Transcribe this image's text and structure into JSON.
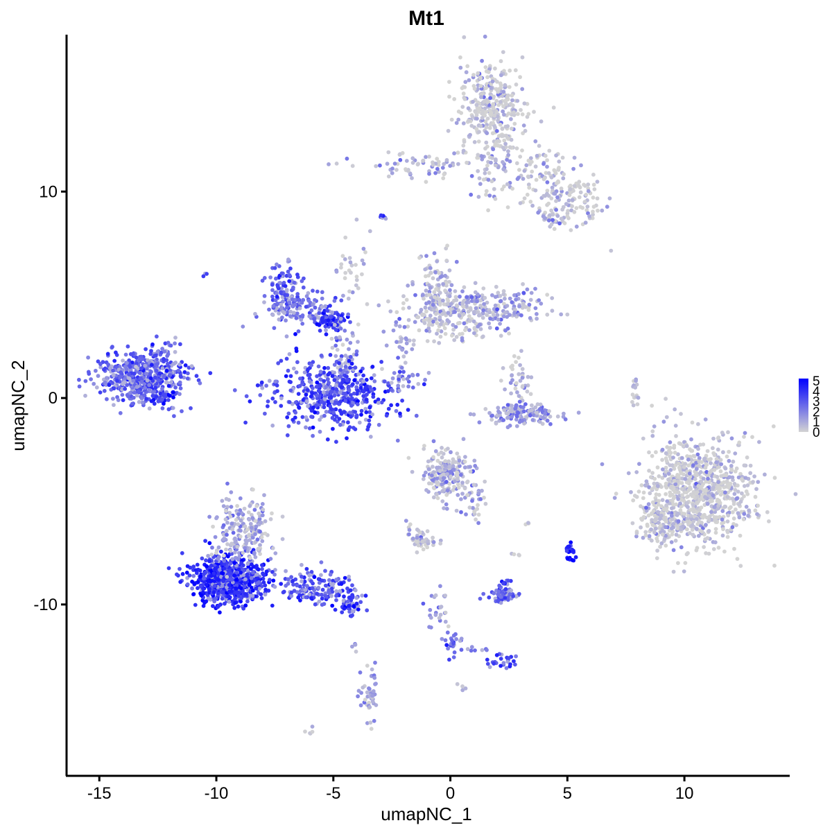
{
  "chart_data": {
    "type": "scatter",
    "title": "Mt1",
    "xlabel": "umapNC_1",
    "ylabel": "umapNC_2",
    "xlim": [
      -16.4,
      14.5
    ],
    "ylim": [
      -18.3,
      17.6
    ],
    "xticks": [
      -15,
      -10,
      -5,
      0,
      5,
      10
    ],
    "xtick_labels": [
      "-15",
      "-10",
      "-5",
      "0",
      "5",
      "10"
    ],
    "yticks": [
      -10,
      0,
      10
    ],
    "ytick_labels": [
      "-10",
      "0",
      "10"
    ],
    "grid": false,
    "legend": {
      "position": "right",
      "labels": [
        "5",
        "4",
        "3",
        "2",
        "1",
        "0"
      ],
      "values": [
        5,
        4,
        3,
        2,
        1,
        0
      ],
      "color_low": "#d3d3d3",
      "color_high": "#0000ff"
    },
    "color_scale": {
      "min": 0,
      "max": 5,
      "low": "#d3d3d3",
      "high": "#0000ff"
    },
    "point_color_note": "points colored by Mt1 expression",
    "clusters": [
      {
        "cx": 1.8,
        "cy": 14.2,
        "sx": 0.75,
        "sy": 1.1,
        "n": 320,
        "expr": 0.3
      },
      {
        "cx": 1.8,
        "cy": 11.5,
        "sx": 0.45,
        "sy": 0.9,
        "n": 70,
        "expr": 0.5
      },
      {
        "cx": -1.3,
        "cy": 11.2,
        "sx": 1.3,
        "sy": 0.35,
        "n": 70,
        "expr": 0.7
      },
      {
        "cx": 3.8,
        "cy": 11.1,
        "sx": 0.8,
        "sy": 0.6,
        "n": 80,
        "expr": 0.3
      },
      {
        "cx": 5.2,
        "cy": 9.6,
        "sx": 0.8,
        "sy": 0.55,
        "n": 110,
        "expr": 0.3
      },
      {
        "cx": 4.4,
        "cy": 8.8,
        "sx": 0.3,
        "sy": 0.3,
        "n": 25,
        "expr": 0.8
      },
      {
        "cx": -2.8,
        "cy": 8.8,
        "sx": 0.1,
        "sy": 0.1,
        "n": 8,
        "expr": 3.5
      },
      {
        "cx": -4.3,
        "cy": 6.4,
        "sx": 0.35,
        "sy": 0.7,
        "n": 30,
        "expr": 0.2
      },
      {
        "cx": -7.0,
        "cy": 5.2,
        "sx": 0.4,
        "sy": 0.6,
        "n": 110,
        "expr": 2.9
      },
      {
        "cx": -6.2,
        "cy": 4.2,
        "sx": 0.9,
        "sy": 0.4,
        "n": 100,
        "expr": 2.6
      },
      {
        "cx": -5.0,
        "cy": 3.7,
        "sx": 0.3,
        "sy": 0.3,
        "n": 80,
        "expr": 3.8
      },
      {
        "cx": -4.6,
        "cy": 2.0,
        "sx": 0.3,
        "sy": 0.7,
        "n": 50,
        "expr": 1.0
      },
      {
        "cx": -5.0,
        "cy": 0.2,
        "sx": 1.4,
        "sy": 0.8,
        "n": 480,
        "expr": 3.3
      },
      {
        "cx": -0.6,
        "cy": 5.2,
        "sx": 0.5,
        "sy": 0.9,
        "n": 110,
        "expr": 0.8
      },
      {
        "cx": -0.3,
        "cy": 3.8,
        "sx": 1.1,
        "sy": 0.6,
        "n": 150,
        "expr": 0.4
      },
      {
        "cx": 1.8,
        "cy": 4.4,
        "sx": 1.1,
        "sy": 0.45,
        "n": 180,
        "expr": 1.1
      },
      {
        "cx": -2.0,
        "cy": 2.7,
        "sx": 0.2,
        "sy": 0.8,
        "n": 25,
        "expr": 1.5
      },
      {
        "cx": -1.8,
        "cy": 1.0,
        "sx": 0.6,
        "sy": 0.3,
        "n": 20,
        "expr": 1.8
      },
      {
        "cx": 2.9,
        "cy": 0.7,
        "sx": 0.3,
        "sy": 0.6,
        "n": 40,
        "expr": 0.3
      },
      {
        "cx": 3.2,
        "cy": -0.8,
        "sx": 0.75,
        "sy": 0.25,
        "n": 140,
        "expr": 1.5
      },
      {
        "cx": 7.9,
        "cy": 0.2,
        "sx": 0.08,
        "sy": 0.45,
        "n": 15,
        "expr": 0.2
      },
      {
        "cx": -13.2,
        "cy": 1.0,
        "sx": 0.9,
        "sy": 0.6,
        "n": 520,
        "expr": 2.7
      },
      {
        "cx": -12.0,
        "cy": 1.2,
        "sx": 0.4,
        "sy": 0.6,
        "n": 40,
        "expr": 3.5
      },
      {
        "cx": -12.3,
        "cy": 0.0,
        "sx": 0.3,
        "sy": 0.15,
        "n": 25,
        "expr": 4.0
      },
      {
        "cx": -11.9,
        "cy": 2.5,
        "sx": 0.25,
        "sy": 0.3,
        "n": 12,
        "expr": 2.4
      },
      {
        "cx": -0.1,
        "cy": -3.6,
        "sx": 0.55,
        "sy": 0.65,
        "n": 200,
        "expr": 0.8
      },
      {
        "cx": 1.0,
        "cy": -4.9,
        "sx": 0.3,
        "sy": 0.55,
        "n": 35,
        "expr": 0.9
      },
      {
        "cx": -1.2,
        "cy": -6.9,
        "sx": 0.3,
        "sy": 0.2,
        "n": 45,
        "expr": 0.7
      },
      {
        "cx": -1.5,
        "cy": -6.3,
        "sx": 0.2,
        "sy": 0.3,
        "n": 10,
        "expr": 0.4
      },
      {
        "cx": 10.6,
        "cy": -4.4,
        "sx": 1.2,
        "sy": 1.3,
        "n": 820,
        "expr": 0.2
      },
      {
        "cx": 9.0,
        "cy": -6.0,
        "sx": 0.45,
        "sy": 0.5,
        "n": 120,
        "expr": 0.3
      },
      {
        "cx": -9.5,
        "cy": -8.8,
        "sx": 0.8,
        "sy": 0.55,
        "n": 760,
        "expr": 3.9
      },
      {
        "cx": -8.8,
        "cy": -6.4,
        "sx": 0.6,
        "sy": 0.8,
        "n": 200,
        "expr": 1.0
      },
      {
        "cx": -5.8,
        "cy": -9.2,
        "sx": 0.9,
        "sy": 0.45,
        "n": 150,
        "expr": 3.2
      },
      {
        "cx": -4.3,
        "cy": -10.1,
        "sx": 0.3,
        "sy": 0.25,
        "n": 40,
        "expr": 3.6
      },
      {
        "cx": 2.3,
        "cy": -9.5,
        "sx": 0.35,
        "sy": 0.15,
        "n": 70,
        "expr": 2.7
      },
      {
        "cx": 2.3,
        "cy": -9.0,
        "sx": 0.15,
        "sy": 0.1,
        "n": 12,
        "expr": 3.4
      },
      {
        "cx": 5.1,
        "cy": -7.4,
        "sx": 0.1,
        "sy": 0.25,
        "n": 25,
        "expr": 4.4
      },
      {
        "cx": -0.5,
        "cy": -10.2,
        "sx": 0.25,
        "sy": 0.6,
        "n": 25,
        "expr": 1.6
      },
      {
        "cx": 0.0,
        "cy": -11.8,
        "sx": 0.25,
        "sy": 0.3,
        "n": 22,
        "expr": 2.4
      },
      {
        "cx": 2.2,
        "cy": -12.7,
        "sx": 0.3,
        "sy": 0.2,
        "n": 25,
        "expr": 3.5
      },
      {
        "cx": 1.0,
        "cy": -12.2,
        "sx": 0.4,
        "sy": 0.1,
        "n": 8,
        "expr": 2.3
      },
      {
        "cx": -3.5,
        "cy": -14.5,
        "sx": 0.2,
        "sy": 0.6,
        "n": 45,
        "expr": 1.2
      },
      {
        "cx": -4.0,
        "cy": -12.0,
        "sx": 0.1,
        "sy": 0.3,
        "n": 4,
        "expr": 1.0
      },
      {
        "cx": -6.0,
        "cy": -16.1,
        "sx": 0.15,
        "sy": 0.1,
        "n": 5,
        "expr": 0.2
      },
      {
        "cx": 0.6,
        "cy": -14.0,
        "sx": 0.1,
        "sy": 0.1,
        "n": 4,
        "expr": 0.9
      },
      {
        "cx": 2.8,
        "cy": -7.6,
        "sx": 0.1,
        "sy": 0.1,
        "n": 4,
        "expr": 0.2
      },
      {
        "cx": 3.3,
        "cy": -6.0,
        "sx": 0.1,
        "sy": 0.1,
        "n": 3,
        "expr": 0.2
      },
      {
        "cx": -10.5,
        "cy": 6.0,
        "sx": 0.1,
        "sy": 0.1,
        "n": 3,
        "expr": 2.5
      },
      {
        "cx": 6.8,
        "cy": 7.1,
        "sx": 0.05,
        "sy": 0.05,
        "n": 1,
        "expr": 0.1
      },
      {
        "cx": 5.1,
        "cy": 8.0,
        "sx": 0.05,
        "sy": 0.05,
        "n": 1,
        "expr": 0.1
      }
    ]
  }
}
